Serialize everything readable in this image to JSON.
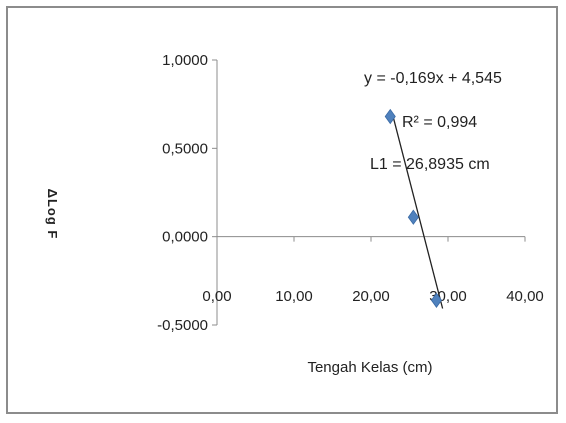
{
  "chart_data": {
    "type": "scatter",
    "title": "",
    "xlabel": "Tengah Kelas (cm)",
    "ylabel": "ΔLog F",
    "xlim": [
      0,
      40
    ],
    "ylim": [
      -0.5,
      1.0
    ],
    "x_tick_labels": [
      "0,00",
      "10,00",
      "20,00",
      "30,00",
      "40,00"
    ],
    "y_tick_labels": [
      "1,0000",
      "0,5000",
      "0,0000",
      "-0,5000"
    ],
    "grid": false,
    "series": [
      {
        "points": [
          {
            "x": 22.5,
            "y": 0.68
          },
          {
            "x": 25.5,
            "y": 0.11
          },
          {
            "x": 28.5,
            "y": -0.36
          }
        ],
        "color": "#4f81bd"
      }
    ],
    "trendline": {
      "slope": -0.169,
      "intercept": 4.545,
      "color": "#222222",
      "equation_label": "y = -0,169x + 4,545",
      "r2_label": "R² = 0,994",
      "l1_label": "L1 = 26,8935 cm"
    }
  }
}
